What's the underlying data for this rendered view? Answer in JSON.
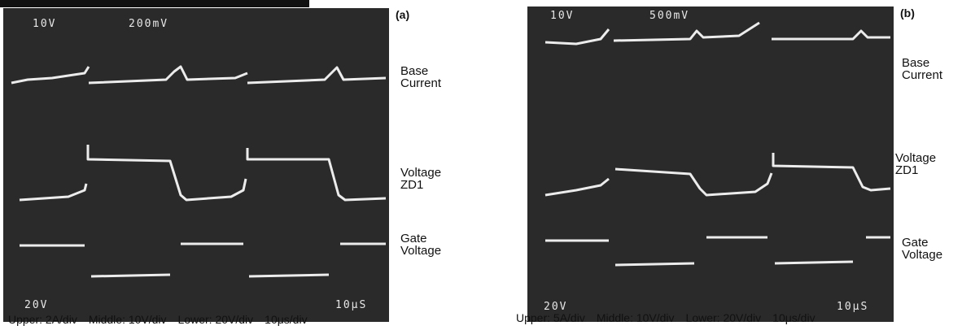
{
  "panels": [
    {
      "label": "(a)",
      "screen_text": {
        "top_left": "10V",
        "top_mid": "200mV",
        "bottom_left": "20V",
        "bottom_right": "10μS"
      },
      "trace_labels": [
        "Base Current",
        "Voltage ZD1",
        "Gate Voltage"
      ],
      "caption": [
        "Upper: 2A/div",
        "Middle: 10V/div",
        "Lower: 20V/div",
        "10μs/div"
      ]
    },
    {
      "label": "(b)",
      "screen_text": {
        "top_left": "10V",
        "top_mid": "500mV",
        "bottom_left": "20V",
        "bottom_right": "10μS"
      },
      "trace_labels": [
        "Base Current",
        "Voltage ZD1",
        "Gate Voltage"
      ],
      "caption": [
        "Upper: 5A/div",
        "Middle: 10V/div",
        "Lower: 20V/div",
        "10μs/div"
      ]
    }
  ]
}
